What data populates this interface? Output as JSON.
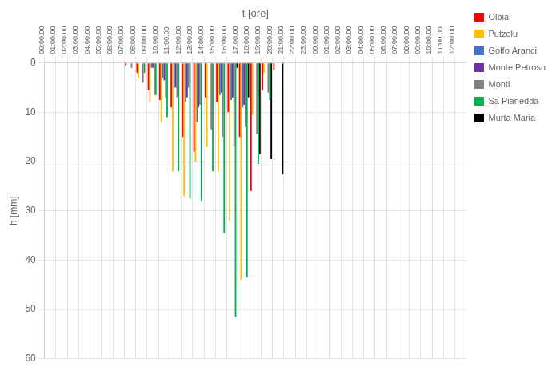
{
  "chart_data": {
    "type": "bar",
    "xlabel": "t [ore]",
    "ylabel": "h [mm]",
    "categories": [
      "00:00.00",
      "01:00.00",
      "02:00.00",
      "03:00.00",
      "04:00.00",
      "05:00.00",
      "06:00.00",
      "07:00.00",
      "08:00.00",
      "09:00.00",
      "10:00.00",
      "11:00.00",
      "12:00.00",
      "13:00.00",
      "14:00.00",
      "15:00.00",
      "16:00.00",
      "17:00.00",
      "18:00.00",
      "19:00.00",
      "20:00.00",
      "21:00.00",
      "22:00.00",
      "23:00.00",
      "00:00.00",
      "01:00.00",
      "02:00.00",
      "03:00.00",
      "04:00.00",
      "05:00.00",
      "06:00.00",
      "07:00.00",
      "08:00.00",
      "09:00.00",
      "10:00.00",
      "11:00.00",
      "12:00.00"
    ],
    "series": [
      {
        "name": "Olbia",
        "color": "#ff0000",
        "values": [
          null,
          null,
          null,
          null,
          null,
          null,
          null,
          0.5,
          2.0,
          5.5,
          7.5,
          9.0,
          15.0,
          18.0,
          7.0,
          8.0,
          10.0,
          15.0,
          26.0,
          5.5,
          1.5,
          null,
          null,
          null,
          null,
          null,
          null,
          null,
          null,
          null,
          null,
          null,
          null,
          null,
          null,
          null,
          null
        ]
      },
      {
        "name": "Putzolu",
        "color": "#ffc000",
        "values": [
          null,
          null,
          null,
          null,
          null,
          null,
          null,
          null,
          3.0,
          8.0,
          12.0,
          22.0,
          27.0,
          20.0,
          17.0,
          22.0,
          32.0,
          44.0,
          10.5,
          2.0,
          null,
          null,
          null,
          null,
          null,
          null,
          null,
          null,
          null,
          null,
          null,
          null,
          null,
          null,
          null,
          null,
          null
        ]
      },
      {
        "name": "Golfo Aranci",
        "color": "#4472c4",
        "values": [
          null,
          null,
          null,
          null,
          null,
          null,
          null,
          null,
          null,
          1.0,
          3.0,
          5.0,
          8.0,
          12.0,
          null,
          6.5,
          7.5,
          9.0,
          null,
          null,
          null,
          null,
          null,
          null,
          null,
          null,
          null,
          null,
          null,
          null,
          null,
          null,
          null,
          null,
          null,
          null,
          null
        ]
      },
      {
        "name": "Monte Petrosu",
        "color": "#7030a0",
        "values": [
          null,
          null,
          null,
          null,
          null,
          null,
          null,
          null,
          null,
          1.0,
          3.5,
          5.0,
          7.0,
          9.0,
          null,
          6.0,
          7.0,
          8.5,
          null,
          null,
          null,
          null,
          null,
          null,
          null,
          null,
          null,
          null,
          null,
          null,
          null,
          null,
          null,
          null,
          null,
          null,
          null
        ]
      },
      {
        "name": "Monti",
        "color": "#808080",
        "values": [
          null,
          null,
          null,
          null,
          null,
          null,
          null,
          1.0,
          4.0,
          6.5,
          7.0,
          7.0,
          5.0,
          8.5,
          13.5,
          15.0,
          17.0,
          13.0,
          14.5,
          6.0,
          null,
          null,
          null,
          null,
          null,
          null,
          null,
          null,
          null,
          null,
          null,
          null,
          null,
          null,
          null,
          null,
          null
        ]
      },
      {
        "name": "Sa Pianedda",
        "color": "#00b050",
        "values": [
          null,
          null,
          null,
          null,
          null,
          null,
          null,
          null,
          2.0,
          6.5,
          11.0,
          22.0,
          27.5,
          28.0,
          22.0,
          34.5,
          51.5,
          43.5,
          20.5,
          7.5,
          null,
          null,
          null,
          null,
          null,
          null,
          null,
          null,
          null,
          null,
          null,
          null,
          null,
          null,
          null,
          null,
          null
        ]
      },
      {
        "name": "Murta Maria",
        "color": "#000000",
        "values": [
          null,
          null,
          null,
          null,
          null,
          null,
          null,
          null,
          null,
          null,
          null,
          null,
          null,
          null,
          null,
          null,
          1.0,
          7.0,
          18.5,
          19.5,
          22.5,
          null,
          null,
          null,
          null,
          null,
          null,
          null,
          null,
          null,
          null,
          null,
          null,
          null,
          null,
          null,
          null
        ]
      }
    ],
    "ylim": [
      60,
      0
    ],
    "yticks": [
      0,
      10,
      20,
      30,
      40,
      50,
      60
    ],
    "grid": true,
    "legend": "upper right"
  }
}
